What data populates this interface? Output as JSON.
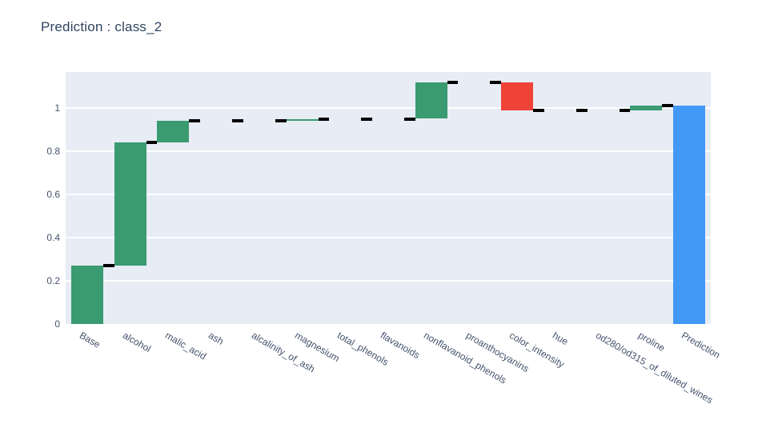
{
  "chart_data": {
    "type": "waterfall",
    "title": "Prediction : class_2",
    "categories": [
      "Base",
      "alcohol",
      "malic_acid",
      "ash",
      "alcalinity_of_ash",
      "magnesium",
      "total_phenols",
      "flavanoids",
      "nonflavanoid_phenols",
      "proanthocyanins",
      "color_intensity",
      "hue",
      "od280/od315_of_diluted_wines",
      "proline",
      "Prediction"
    ],
    "measures": [
      "relative",
      "relative",
      "relative",
      "relative",
      "relative",
      "relative",
      "relative",
      "relative",
      "relative",
      "relative",
      "relative",
      "relative",
      "relative",
      "relative",
      "total"
    ],
    "contributions": [
      0.27,
      0.57,
      0.1,
      0.0,
      0.0,
      0.01,
      0.0,
      0.0,
      0.17,
      0.0,
      -0.13,
      0.0,
      0.0,
      0.02,
      1.01
    ],
    "running_totals": [
      0.27,
      0.84,
      0.94,
      0.94,
      0.94,
      0.95,
      0.95,
      0.95,
      1.12,
      1.12,
      0.99,
      0.99,
      0.99,
      1.01,
      1.01
    ],
    "ytick_labels": [
      "0",
      "0.2",
      "0.4",
      "0.6",
      "0.8",
      "1"
    ],
    "ytick_values": [
      0,
      0.2,
      0.4,
      0.6,
      0.8,
      1
    ],
    "ylim": [
      0,
      1.1667
    ],
    "grid": true,
    "legend": "none",
    "colors": {
      "increasing": "#3a9a70",
      "decreasing": "#ef4338",
      "total": "#4298f5",
      "connector": "#000000",
      "plot_background": "#e7ecf5",
      "gridline": "#ffffff",
      "text": "#2f4560",
      "tick_text": "#44536e",
      "page_background": "#ffffff"
    }
  }
}
